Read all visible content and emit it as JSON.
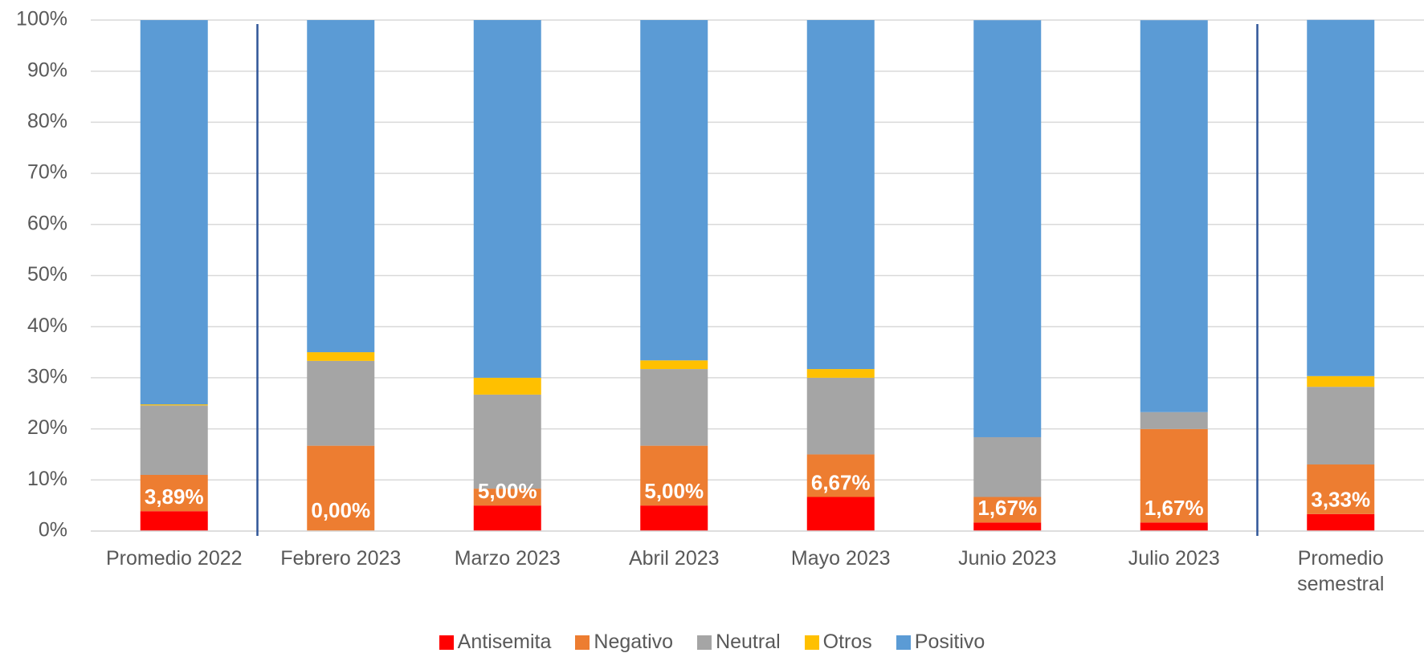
{
  "chart_data": {
    "type": "stacked_bar",
    "categories": [
      "Promedio 2022",
      "Febrero 2023",
      "Marzo 2023",
      "Abril 2023",
      "Mayo 2023",
      "Junio 2023",
      "Julio 2023",
      "Promedio semestral"
    ],
    "series": [
      {
        "name": "Antisemita",
        "color": "#ff0000",
        "values": [
          3.89,
          0,
          5,
          5,
          6.67,
          1.67,
          1.67,
          3.33
        ],
        "value_labels": [
          "3,89%",
          "0,00%",
          "5,00%",
          "5,00%",
          "6,67%",
          "1,67%",
          "1,67%",
          "3,33%"
        ]
      },
      {
        "name": "Negativo",
        "color": "#ed7d31",
        "values": [
          7.1,
          16.7,
          3.3,
          11.7,
          8.33,
          5,
          18.3,
          9.7
        ]
      },
      {
        "name": "Neutral",
        "color": "#a5a5a5",
        "values": [
          13.6,
          16.6,
          18.4,
          15,
          15,
          11.7,
          3.3,
          15.2
        ]
      },
      {
        "name": "Otros",
        "color": "#ffc000",
        "values": [
          0.2,
          1.7,
          3.3,
          1.7,
          1.7,
          0,
          0,
          2.1
        ]
      },
      {
        "name": "Positivo",
        "color": "#5b9bd5",
        "values": [
          75.2,
          65,
          70,
          66.6,
          68.3,
          81.6,
          76.7,
          69.7
        ]
      }
    ],
    "ylim": [
      0,
      100
    ],
    "yticks": [
      {
        "value": 0,
        "label": "0%"
      },
      {
        "value": 10,
        "label": "10%"
      },
      {
        "value": 20,
        "label": "20%"
      },
      {
        "value": 30,
        "label": "30%"
      },
      {
        "value": 40,
        "label": "40%"
      },
      {
        "value": 50,
        "label": "50%"
      },
      {
        "value": 60,
        "label": "60%"
      },
      {
        "value": 70,
        "label": "70%"
      },
      {
        "value": 80,
        "label": "80%"
      },
      {
        "value": 90,
        "label": "90%"
      },
      {
        "value": 100,
        "label": "100%"
      }
    ],
    "grid": true,
    "legend": "bottom"
  }
}
